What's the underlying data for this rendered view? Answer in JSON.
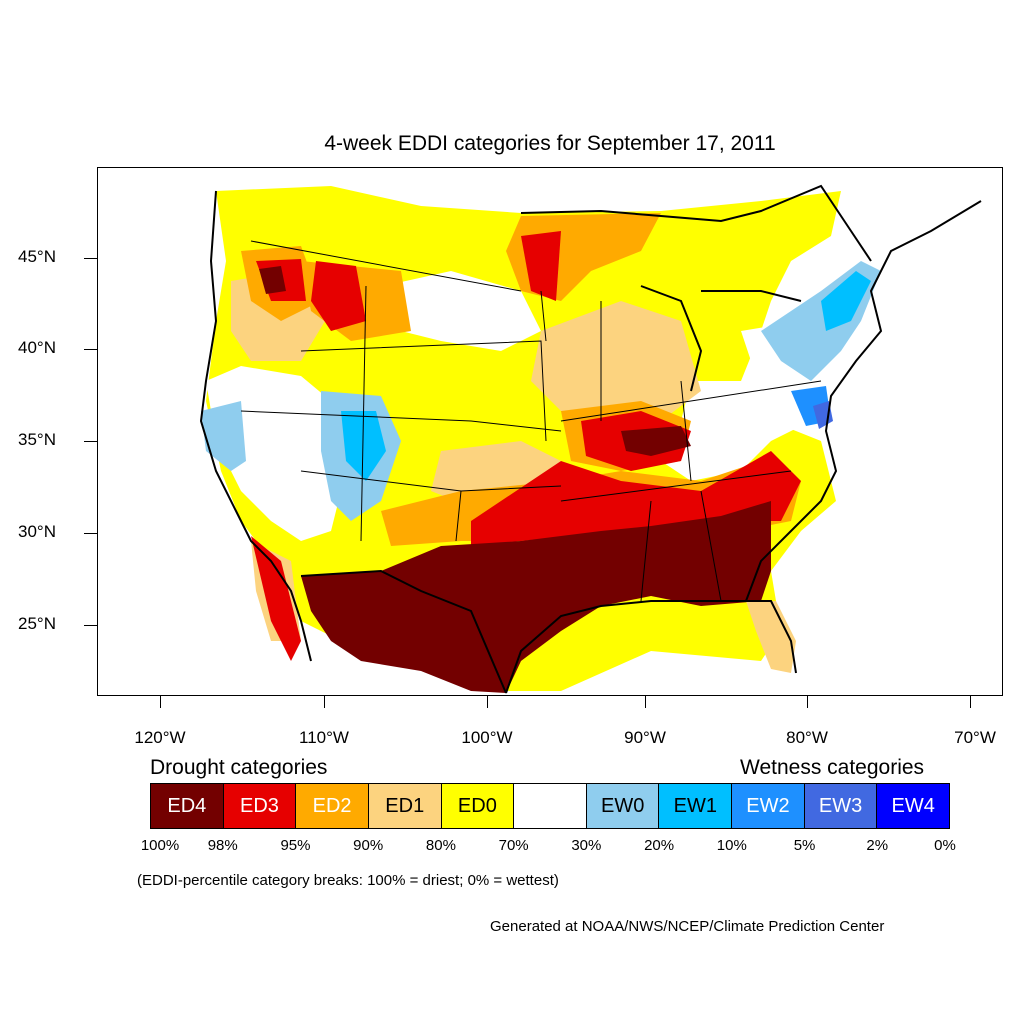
{
  "title": "4-week EDDI categories for September 17, 2011",
  "map": {
    "region": "Contiguous United States",
    "y_axis_labels": [
      "45°N",
      "40°N",
      "35°N",
      "30°N",
      "25°N"
    ],
    "x_axis_labels": [
      "120°W",
      "110°W",
      "100°W",
      "90°W",
      "80°W",
      "70°W"
    ]
  },
  "legend": {
    "drought_heading": "Drought categories",
    "wetness_heading": "Wetness categories",
    "categories": [
      {
        "label": "ED4",
        "color": "#730000",
        "text_color": "#ffffff"
      },
      {
        "label": "ED3",
        "color": "#e60000",
        "text_color": "#ffffff"
      },
      {
        "label": "ED2",
        "color": "#ffaa00",
        "text_color": "#ffffff"
      },
      {
        "label": "ED1",
        "color": "#fcd37f",
        "text_color": "#000000"
      },
      {
        "label": "ED0",
        "color": "#ffff00",
        "text_color": "#000000"
      },
      {
        "label": "",
        "color": "#ffffff",
        "text_color": "#000000"
      },
      {
        "label": "EW0",
        "color": "#8fcdee",
        "text_color": "#000000"
      },
      {
        "label": "EW1",
        "color": "#00bfff",
        "text_color": "#000000"
      },
      {
        "label": "EW2",
        "color": "#1e90ff",
        "text_color": "#ffffff"
      },
      {
        "label": "EW3",
        "color": "#4169e1",
        "text_color": "#ffffff"
      },
      {
        "label": "EW4",
        "color": "#0000ff",
        "text_color": "#ffffff"
      }
    ],
    "percentile_breaks": [
      "100%",
      "98%",
      "95%",
      "90%",
      "80%",
      "70%",
      "30%",
      "20%",
      "10%",
      "5%",
      "2%",
      "0%"
    ]
  },
  "note": "(EDDI-percentile category breaks: 100% = driest; 0% = wettest)",
  "credit": "Generated at NOAA/NWS/NCEP/Climate Prediction Center"
}
